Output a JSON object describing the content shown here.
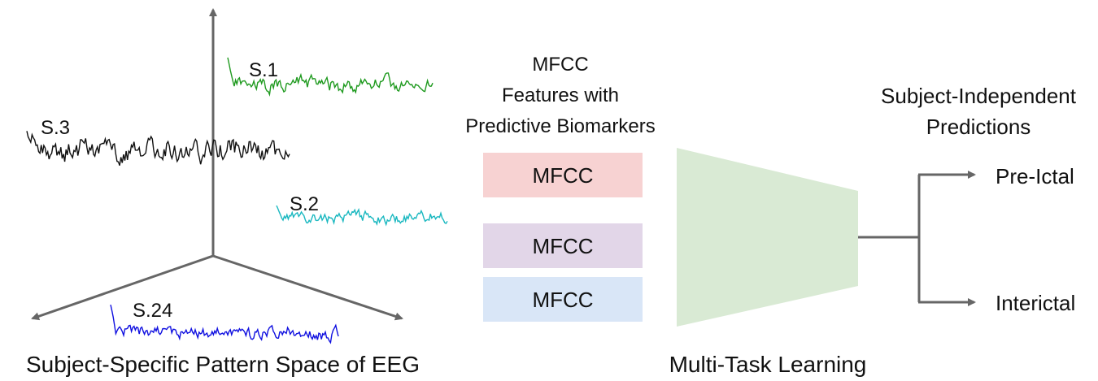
{
  "axes": {
    "color": "#666666"
  },
  "signals": [
    {
      "label": "S.1",
      "color": "#1f9a1f",
      "seed": 11,
      "amplitude": 9
    },
    {
      "label": "S.3",
      "color": "#111111",
      "seed": 37,
      "amplitude": 14
    },
    {
      "label": "S.2",
      "color": "#1ab8c0",
      "seed": 23,
      "amplitude": 7
    },
    {
      "label": "S.24",
      "color": "#1010e0",
      "seed": 53,
      "amplitude": 8
    }
  ],
  "left_caption": "Subject-Specific Pattern Space of EEG",
  "features": {
    "header": [
      "MFCC",
      "Features with",
      "Predictive Biomarkers"
    ],
    "boxes": [
      {
        "label": "MFCC",
        "color": "#f7d2d2"
      },
      {
        "label": "MFCC",
        "color": "#e2d6e8"
      },
      {
        "label": "MFCC",
        "color": "#d9e6f7"
      }
    ]
  },
  "model": {
    "caption": "Multi-Task Learning",
    "color": "#d9ead4"
  },
  "predictions": {
    "header": [
      "Subject-Independent",
      "Predictions"
    ],
    "outputs": [
      "Pre-Ictal",
      "Interictal"
    ],
    "line_color": "#666666"
  }
}
